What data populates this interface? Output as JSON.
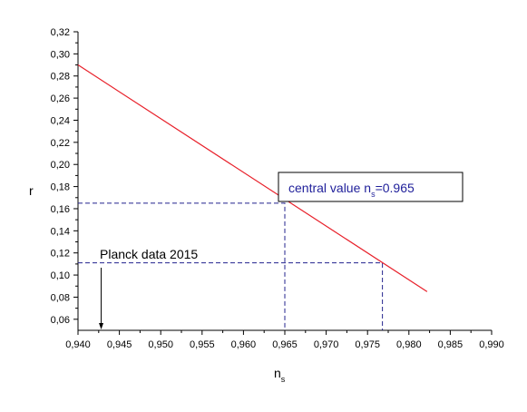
{
  "chart_data": {
    "type": "line",
    "title": "",
    "xlabel": "n",
    "xlabel_sub": "s",
    "ylabel": "r",
    "xlim": [
      0.94,
      0.99
    ],
    "ylim": [
      0.05,
      0.32
    ],
    "x_ticks": [
      0.94,
      0.945,
      0.95,
      0.955,
      0.96,
      0.965,
      0.97,
      0.975,
      0.98,
      0.985,
      0.99
    ],
    "x_tick_labels": [
      "0,940",
      "0,945",
      "0,950",
      "0,955",
      "0,960",
      "0,965",
      "0,970",
      "0,975",
      "0,980",
      "0,985",
      "0,990"
    ],
    "y_ticks": [
      0.06,
      0.08,
      0.1,
      0.12,
      0.14,
      0.16,
      0.18,
      0.2,
      0.22,
      0.24,
      0.26,
      0.28,
      0.3,
      0.32
    ],
    "y_tick_labels": [
      "0,06",
      "0,08",
      "0,10",
      "0,12",
      "0,14",
      "0,16",
      "0,18",
      "0,20",
      "0,22",
      "0,24",
      "0,26",
      "0,28",
      "0,30",
      "0,32"
    ],
    "grid": false,
    "series": [
      {
        "color": "#e8202a",
        "x": [
          0.94,
          0.9822
        ],
        "y": [
          0.29,
          0.085
        ]
      }
    ],
    "guides": [
      {
        "color": "#23238e",
        "from": [
          0.94,
          0.165
        ],
        "corner": [
          0.965,
          0.165
        ],
        "to": [
          0.965,
          0.05
        ]
      },
      {
        "color": "#23238e",
        "from": [
          0.94,
          0.111
        ],
        "corner": [
          0.9768,
          0.111
        ],
        "to": [
          0.9768,
          0.05
        ]
      }
    ],
    "annotations": {
      "central_value": {
        "text": "central value n",
        "sub": "s",
        "suffix": "=0.965"
      },
      "planck": {
        "text": "Planck data 2015",
        "arrow_x": 0.9428
      }
    }
  }
}
